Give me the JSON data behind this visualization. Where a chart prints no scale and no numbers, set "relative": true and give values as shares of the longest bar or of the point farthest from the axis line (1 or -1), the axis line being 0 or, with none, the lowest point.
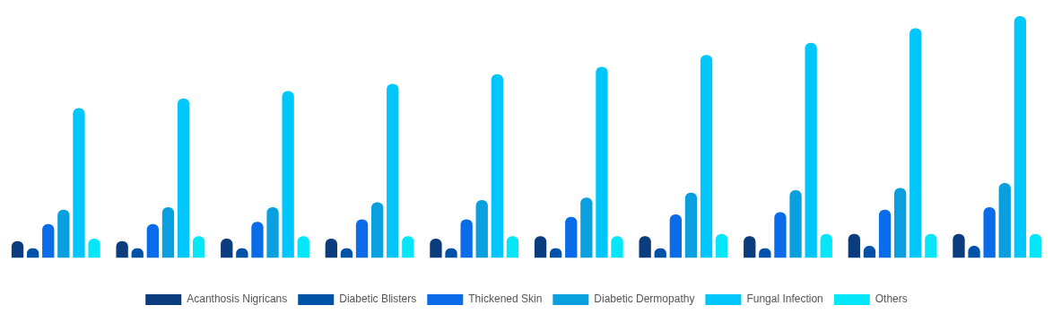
{
  "chart_data": {
    "type": "bar",
    "relative": true,
    "legend": "bottom",
    "grid": false,
    "categories": [
      null,
      null,
      null,
      null,
      null,
      null,
      null,
      null,
      null,
      null
    ],
    "series": [
      {
        "name": "Acanthosis Nigricans",
        "color": "#0b3d7e",
        "values": [
          0.07,
          0.07,
          0.08,
          0.08,
          0.08,
          0.09,
          0.09,
          0.09,
          0.1,
          0.1
        ]
      },
      {
        "name": "Diabetic Blisters",
        "color": "#0052a8",
        "values": [
          0.04,
          0.04,
          0.04,
          0.04,
          0.04,
          0.04,
          0.04,
          0.04,
          0.05,
          0.05
        ]
      },
      {
        "name": "Thickened Skin",
        "color": "#0a6ce8",
        "values": [
          0.14,
          0.14,
          0.15,
          0.16,
          0.16,
          0.17,
          0.18,
          0.19,
          0.2,
          0.21
        ]
      },
      {
        "name": "Diabetic Dermopathy",
        "color": "#0aa0e0",
        "values": [
          0.2,
          0.21,
          0.21,
          0.23,
          0.24,
          0.25,
          0.27,
          0.28,
          0.29,
          0.31
        ]
      },
      {
        "name": "Fungal Infection",
        "color": "#00c6fc",
        "values": [
          0.62,
          0.66,
          0.69,
          0.72,
          0.76,
          0.79,
          0.84,
          0.89,
          0.95,
          1
        ]
      },
      {
        "name": "Others",
        "color": "#05e6f8",
        "values": [
          0.08,
          0.09,
          0.09,
          0.09,
          0.09,
          0.09,
          0.1,
          0.1,
          0.1,
          0.1
        ]
      }
    ]
  }
}
